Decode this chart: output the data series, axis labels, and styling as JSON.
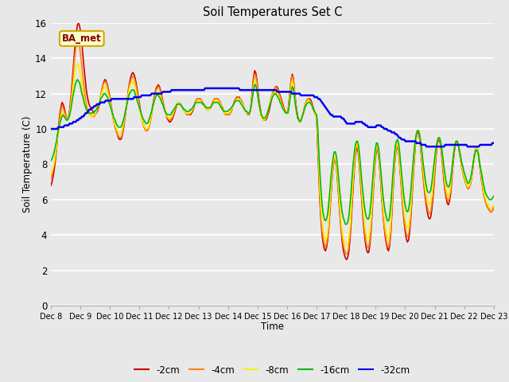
{
  "title": "Soil Temperatures Set C",
  "xlabel": "Time",
  "ylabel": "Soil Temperature (C)",
  "annotation": "BA_met",
  "ylim": [
    0,
    16
  ],
  "yticks": [
    0,
    2,
    4,
    6,
    8,
    10,
    12,
    14,
    16
  ],
  "x_labels": [
    "Dec 8",
    "Dec 9",
    "Dec 10",
    "Dec 11",
    "Dec 12",
    "Dec 13",
    "Dec 14",
    "Dec 15",
    "Dec 16",
    "Dec 17",
    "Dec 18",
    "Dec 19",
    "Dec 20",
    "Dec 21",
    "Dec 22",
    "Dec 23"
  ],
  "legend_labels": [
    "-2cm",
    "-4cm",
    "-8cm",
    "-16cm",
    "-32cm"
  ],
  "line_colors": [
    "#cc0000",
    "#ff8800",
    "#ffee00",
    "#00bb00",
    "#0000ee"
  ],
  "line_widths": [
    1.2,
    1.2,
    1.2,
    1.2,
    1.8
  ],
  "background_color": "#e8e8e8",
  "series_2cm": [
    6.8,
    7.0,
    7.3,
    7.7,
    8.2,
    8.8,
    9.5,
    10.2,
    10.8,
    11.2,
    11.5,
    11.4,
    11.2,
    10.9,
    10.6,
    10.5,
    10.7,
    11.1,
    11.7,
    12.5,
    13.3,
    14.1,
    14.9,
    15.5,
    15.9,
    16.0,
    15.8,
    15.4,
    14.8,
    14.1,
    13.4,
    12.8,
    12.2,
    11.8,
    11.5,
    11.3,
    11.2,
    11.1,
    11.0,
    10.9,
    10.9,
    10.9,
    11.0,
    11.2,
    11.5,
    11.8,
    12.2,
    12.5,
    12.7,
    12.8,
    12.7,
    12.5,
    12.2,
    11.9,
    11.5,
    11.1,
    10.7,
    10.4,
    10.1,
    9.9,
    9.7,
    9.5,
    9.4,
    9.4,
    9.5,
    9.8,
    10.2,
    10.7,
    11.2,
    11.7,
    12.2,
    12.6,
    12.9,
    13.1,
    13.2,
    13.1,
    12.9,
    12.6,
    12.2,
    11.8,
    11.4,
    11.0,
    10.7,
    10.4,
    10.2,
    10.0,
    9.9,
    9.9,
    10.0,
    10.2,
    10.5,
    10.9,
    11.3,
    11.7,
    12.0,
    12.3,
    12.4,
    12.5,
    12.4,
    12.2,
    11.9,
    11.6,
    11.3,
    11.0,
    10.8,
    10.6,
    10.5,
    10.4,
    10.4,
    10.5,
    10.6,
    10.8,
    11.0,
    11.2,
    11.4,
    11.5,
    11.5,
    11.4,
    11.3,
    11.2,
    11.1,
    11.0,
    10.9,
    10.8,
    10.8,
    10.8,
    10.8,
    10.9,
    11.0,
    11.2,
    11.4,
    11.6,
    11.7,
    11.7,
    11.7,
    11.7,
    11.6,
    11.5,
    11.4,
    11.3,
    11.2,
    11.1,
    11.1,
    11.1,
    11.2,
    11.3,
    11.5,
    11.6,
    11.7,
    11.7,
    11.7,
    11.7,
    11.6,
    11.5,
    11.3,
    11.2,
    11.0,
    10.9,
    10.8,
    10.8,
    10.8,
    10.8,
    10.9,
    11.0,
    11.2,
    11.4,
    11.6,
    11.7,
    11.8,
    11.8,
    11.8,
    11.7,
    11.6,
    11.5,
    11.3,
    11.1,
    11.0,
    10.9,
    10.8,
    10.8,
    11.0,
    11.5,
    12.2,
    12.9,
    13.3,
    13.2,
    12.8,
    12.2,
    11.6,
    11.2,
    10.8,
    10.6,
    10.5,
    10.5,
    10.5,
    10.6,
    10.8,
    11.0,
    11.3,
    11.6,
    11.9,
    12.1,
    12.3,
    12.4,
    12.4,
    12.3,
    12.1,
    11.9,
    11.7,
    11.5,
    11.3,
    11.1,
    11.0,
    10.9,
    10.9,
    11.5,
    12.2,
    12.8,
    13.1,
    12.9,
    12.2,
    11.6,
    11.1,
    10.7,
    10.5,
    10.4,
    10.5,
    10.7,
    10.9,
    11.2,
    11.4,
    11.6,
    11.7,
    11.7,
    11.7,
    11.6,
    11.4,
    11.2,
    11.0,
    10.8,
    10.7,
    9.0,
    7.4,
    5.9,
    4.8,
    4.0,
    3.5,
    3.2,
    3.1,
    3.3,
    3.7,
    4.4,
    5.3,
    6.3,
    7.2,
    7.9,
    8.3,
    8.2,
    7.8,
    7.0,
    6.1,
    5.2,
    4.4,
    3.7,
    3.2,
    2.9,
    2.7,
    2.6,
    2.7,
    3.0,
    3.6,
    4.5,
    5.6,
    6.7,
    7.7,
    8.5,
    8.9,
    8.9,
    8.4,
    7.6,
    6.7,
    5.8,
    4.9,
    4.2,
    3.6,
    3.2,
    3.0,
    3.0,
    3.4,
    4.1,
    5.1,
    6.2,
    7.3,
    8.2,
    8.8,
    8.9,
    8.5,
    7.8,
    6.9,
    6.0,
    5.2,
    4.5,
    3.9,
    3.5,
    3.2,
    3.1,
    3.4,
    4.1,
    5.2,
    6.4,
    7.5,
    8.4,
    8.9,
    9.0,
    8.7,
    8.0,
    7.2,
    6.3,
    5.5,
    4.8,
    4.2,
    3.8,
    3.6,
    3.7,
    4.1,
    4.9,
    5.9,
    7.0,
    8.0,
    8.9,
    9.5,
    9.8,
    9.8,
    9.5,
    8.9,
    8.2,
    7.5,
    6.8,
    6.2,
    5.7,
    5.3,
    5.0,
    4.9,
    5.0,
    5.4,
    6.0,
    6.8,
    7.7,
    8.5,
    9.1,
    9.4,
    9.4,
    9.1,
    8.5,
    7.8,
    7.1,
    6.5,
    6.1,
    5.8,
    5.7,
    5.9,
    6.3,
    7.0,
    7.8,
    8.5,
    9.0,
    9.3,
    9.3,
    9.1,
    8.7,
    8.3,
    7.9,
    7.6,
    7.3,
    7.1,
    6.9,
    6.7,
    6.6,
    6.7,
    6.9,
    7.2,
    7.7,
    8.2,
    8.7,
    8.9,
    8.9,
    8.6,
    8.1,
    7.6,
    7.1,
    6.7,
    6.3,
    6.0,
    5.8,
    5.6,
    5.5,
    5.4,
    5.3,
    5.3,
    5.4,
    5.5
  ],
  "series_4cm": [
    7.2,
    7.4,
    7.7,
    8.0,
    8.5,
    9.0,
    9.6,
    10.1,
    10.6,
    11.0,
    11.3,
    11.2,
    11.0,
    10.8,
    10.6,
    10.5,
    10.7,
    11.0,
    11.5,
    12.2,
    12.9,
    13.7,
    14.3,
    14.8,
    15.0,
    14.9,
    14.6,
    14.1,
    13.5,
    12.9,
    12.3,
    11.8,
    11.4,
    11.1,
    10.9,
    10.8,
    10.8,
    10.7,
    10.7,
    10.7,
    10.8,
    10.9,
    11.1,
    11.3,
    11.6,
    11.9,
    12.2,
    12.5,
    12.6,
    12.7,
    12.6,
    12.4,
    12.1,
    11.8,
    11.4,
    11.1,
    10.7,
    10.4,
    10.1,
    9.9,
    9.7,
    9.6,
    9.5,
    9.5,
    9.6,
    9.9,
    10.3,
    10.7,
    11.2,
    11.7,
    12.1,
    12.5,
    12.7,
    12.9,
    13.0,
    12.9,
    12.7,
    12.4,
    12.0,
    11.6,
    11.2,
    10.9,
    10.6,
    10.3,
    10.1,
    10.0,
    9.9,
    9.9,
    10.0,
    10.2,
    10.5,
    10.8,
    11.2,
    11.6,
    11.9,
    12.2,
    12.3,
    12.4,
    12.3,
    12.1,
    11.8,
    11.5,
    11.3,
    11.0,
    10.8,
    10.7,
    10.6,
    10.5,
    10.5,
    10.6,
    10.7,
    10.9,
    11.1,
    11.2,
    11.4,
    11.5,
    11.5,
    11.4,
    11.3,
    11.2,
    11.1,
    11.0,
    10.9,
    10.8,
    10.8,
    10.8,
    10.9,
    11.0,
    11.1,
    11.3,
    11.5,
    11.6,
    11.7,
    11.7,
    11.7,
    11.7,
    11.6,
    11.5,
    11.4,
    11.3,
    11.2,
    11.1,
    11.1,
    11.1,
    11.2,
    11.3,
    11.5,
    11.6,
    11.7,
    11.7,
    11.7,
    11.7,
    11.6,
    11.5,
    11.3,
    11.2,
    11.0,
    10.9,
    10.8,
    10.8,
    10.8,
    10.8,
    10.9,
    11.0,
    11.2,
    11.4,
    11.5,
    11.7,
    11.7,
    11.8,
    11.7,
    11.7,
    11.6,
    11.5,
    11.3,
    11.1,
    11.0,
    10.9,
    10.8,
    10.8,
    11.0,
    11.4,
    12.0,
    12.7,
    13.1,
    13.0,
    12.6,
    12.0,
    11.5,
    11.1,
    10.8,
    10.6,
    10.5,
    10.5,
    10.6,
    10.7,
    10.9,
    11.2,
    11.5,
    11.8,
    12.0,
    12.2,
    12.3,
    12.4,
    12.3,
    12.2,
    12.0,
    11.8,
    11.6,
    11.4,
    11.2,
    11.1,
    11.0,
    10.9,
    10.9,
    11.4,
    12.1,
    12.7,
    13.0,
    12.8,
    12.1,
    11.5,
    11.0,
    10.6,
    10.4,
    10.4,
    10.5,
    10.7,
    10.9,
    11.2,
    11.4,
    11.6,
    11.7,
    11.7,
    11.6,
    11.5,
    11.3,
    11.1,
    10.9,
    10.8,
    10.7,
    9.3,
    7.7,
    6.2,
    5.1,
    4.3,
    3.8,
    3.5,
    3.3,
    3.5,
    3.9,
    4.6,
    5.5,
    6.5,
    7.4,
    8.0,
    8.4,
    8.3,
    7.9,
    7.2,
    6.3,
    5.4,
    4.6,
    3.9,
    3.5,
    3.2,
    3.0,
    2.9,
    3.0,
    3.3,
    3.9,
    4.8,
    5.9,
    7.0,
    7.9,
    8.7,
    9.1,
    9.1,
    8.6,
    7.8,
    6.9,
    6.0,
    5.2,
    4.5,
    3.9,
    3.5,
    3.3,
    3.3,
    3.7,
    4.4,
    5.4,
    6.5,
    7.5,
    8.4,
    8.9,
    9.0,
    8.6,
    7.9,
    7.0,
    6.1,
    5.3,
    4.6,
    4.1,
    3.7,
    3.4,
    3.3,
    3.6,
    4.3,
    5.4,
    6.6,
    7.6,
    8.5,
    9.0,
    9.1,
    8.8,
    8.1,
    7.3,
    6.5,
    5.7,
    5.0,
    4.5,
    4.1,
    3.9,
    4.0,
    4.4,
    5.2,
    6.2,
    7.2,
    8.2,
    9.0,
    9.6,
    9.9,
    9.9,
    9.6,
    9.0,
    8.3,
    7.6,
    6.9,
    6.4,
    5.9,
    5.6,
    5.3,
    5.2,
    5.3,
    5.7,
    6.3,
    7.1,
    7.9,
    8.7,
    9.2,
    9.5,
    9.5,
    9.2,
    8.6,
    7.9,
    7.3,
    6.7,
    6.3,
    6.0,
    5.9,
    6.1,
    6.5,
    7.2,
    7.9,
    8.6,
    9.1,
    9.3,
    9.3,
    9.1,
    8.7,
    8.3,
    7.9,
    7.6,
    7.3,
    7.1,
    6.9,
    6.7,
    6.6,
    6.7,
    6.9,
    7.3,
    7.8,
    8.3,
    8.7,
    9.0,
    8.9,
    8.7,
    8.2,
    7.7,
    7.2,
    6.7,
    6.3,
    6.0,
    5.8,
    5.6,
    5.5,
    5.4,
    5.3,
    5.3,
    5.4,
    5.6
  ],
  "series_8cm": [
    7.5,
    7.6,
    7.8,
    8.1,
    8.5,
    9.0,
    9.5,
    9.9,
    10.3,
    10.6,
    10.9,
    10.9,
    10.8,
    10.6,
    10.5,
    10.5,
    10.6,
    10.9,
    11.3,
    11.8,
    12.4,
    12.9,
    13.3,
    13.6,
    13.7,
    13.6,
    13.3,
    12.9,
    12.5,
    12.1,
    11.7,
    11.4,
    11.1,
    10.9,
    10.8,
    10.8,
    10.7,
    10.7,
    10.8,
    10.8,
    10.9,
    11.0,
    11.2,
    11.4,
    11.6,
    11.8,
    12.0,
    12.2,
    12.3,
    12.4,
    12.3,
    12.1,
    11.9,
    11.6,
    11.3,
    11.0,
    10.7,
    10.5,
    10.2,
    10.1,
    9.9,
    9.8,
    9.8,
    9.8,
    9.9,
    10.2,
    10.5,
    10.9,
    11.3,
    11.7,
    12.0,
    12.3,
    12.5,
    12.6,
    12.7,
    12.6,
    12.4,
    12.1,
    11.8,
    11.5,
    11.2,
    10.9,
    10.6,
    10.4,
    10.2,
    10.1,
    10.0,
    10.0,
    10.1,
    10.3,
    10.6,
    10.9,
    11.2,
    11.5,
    11.8,
    12.0,
    12.1,
    12.1,
    12.0,
    11.8,
    11.6,
    11.4,
    11.2,
    11.0,
    10.8,
    10.7,
    10.6,
    10.6,
    10.7,
    10.7,
    10.9,
    11.0,
    11.2,
    11.3,
    11.4,
    11.5,
    11.5,
    11.4,
    11.3,
    11.2,
    11.1,
    11.0,
    10.9,
    10.9,
    10.9,
    10.9,
    10.9,
    11.0,
    11.1,
    11.3,
    11.4,
    11.5,
    11.6,
    11.6,
    11.6,
    11.6,
    11.5,
    11.4,
    11.3,
    11.2,
    11.2,
    11.1,
    11.1,
    11.1,
    11.2,
    11.3,
    11.4,
    11.5,
    11.6,
    11.6,
    11.6,
    11.6,
    11.5,
    11.4,
    11.2,
    11.1,
    11.0,
    10.9,
    10.9,
    10.9,
    10.9,
    10.9,
    11.0,
    11.1,
    11.2,
    11.4,
    11.5,
    11.6,
    11.7,
    11.7,
    11.7,
    11.6,
    11.5,
    11.4,
    11.3,
    11.1,
    11.0,
    10.9,
    10.9,
    10.9,
    11.0,
    11.4,
    11.9,
    12.4,
    12.7,
    12.7,
    12.3,
    11.8,
    11.4,
    11.0,
    10.7,
    10.6,
    10.5,
    10.5,
    10.6,
    10.8,
    11.0,
    11.3,
    11.5,
    11.7,
    11.9,
    12.0,
    12.1,
    12.1,
    12.0,
    11.9,
    11.8,
    11.6,
    11.4,
    11.3,
    11.1,
    11.0,
    10.9,
    10.9,
    10.9,
    11.3,
    11.9,
    12.4,
    12.7,
    12.5,
    11.9,
    11.4,
    10.9,
    10.6,
    10.4,
    10.4,
    10.5,
    10.7,
    10.9,
    11.1,
    11.3,
    11.5,
    11.6,
    11.6,
    11.5,
    11.4,
    11.3,
    11.1,
    10.9,
    10.8,
    10.7,
    9.6,
    8.1,
    6.6,
    5.5,
    4.7,
    4.2,
    3.9,
    3.7,
    3.8,
    4.2,
    4.9,
    5.8,
    6.7,
    7.5,
    8.1,
    8.4,
    8.4,
    8.0,
    7.3,
    6.5,
    5.7,
    4.9,
    4.3,
    3.9,
    3.6,
    3.4,
    3.4,
    3.5,
    3.8,
    4.4,
    5.3,
    6.3,
    7.3,
    8.2,
    8.8,
    9.2,
    9.2,
    8.7,
    8.0,
    7.2,
    6.3,
    5.5,
    4.9,
    4.3,
    4.0,
    3.8,
    3.8,
    4.2,
    4.8,
    5.7,
    6.7,
    7.7,
    8.5,
    9.0,
    9.1,
    8.7,
    8.0,
    7.2,
    6.4,
    5.6,
    5.0,
    4.5,
    4.1,
    3.9,
    3.8,
    4.1,
    4.8,
    5.8,
    6.9,
    7.9,
    8.7,
    9.1,
    9.2,
    8.9,
    8.3,
    7.5,
    6.8,
    6.0,
    5.4,
    4.9,
    4.6,
    4.4,
    4.5,
    4.9,
    5.6,
    6.5,
    7.5,
    8.4,
    9.1,
    9.6,
    9.9,
    9.9,
    9.7,
    9.2,
    8.5,
    7.9,
    7.3,
    6.7,
    6.3,
    6.0,
    5.8,
    5.7,
    5.9,
    6.2,
    6.8,
    7.5,
    8.2,
    8.8,
    9.3,
    9.5,
    9.5,
    9.3,
    8.8,
    8.2,
    7.6,
    7.0,
    6.6,
    6.3,
    6.2,
    6.4,
    6.8,
    7.4,
    8.1,
    8.7,
    9.1,
    9.3,
    9.3,
    9.1,
    8.8,
    8.4,
    8.0,
    7.7,
    7.4,
    7.2,
    7.0,
    6.8,
    6.7,
    6.8,
    7.0,
    7.3,
    7.8,
    8.2,
    8.6,
    8.9,
    8.9,
    8.6,
    8.2,
    7.7,
    7.3,
    6.9,
    6.5,
    6.2,
    6.0,
    5.8,
    5.7,
    5.6,
    5.5,
    5.5,
    5.6,
    5.7
  ],
  "series_16cm": [
    8.2,
    8.3,
    8.5,
    8.7,
    9.0,
    9.3,
    9.7,
    10.0,
    10.3,
    10.5,
    10.7,
    10.8,
    10.7,
    10.6,
    10.5,
    10.5,
    10.6,
    10.8,
    11.1,
    11.5,
    11.9,
    12.2,
    12.5,
    12.7,
    12.8,
    12.7,
    12.6,
    12.3,
    12.0,
    11.8,
    11.5,
    11.3,
    11.1,
    11.0,
    10.9,
    10.9,
    10.9,
    10.9,
    10.9,
    11.0,
    11.0,
    11.1,
    11.2,
    11.4,
    11.5,
    11.7,
    11.8,
    11.9,
    12.0,
    12.0,
    11.9,
    11.8,
    11.6,
    11.4,
    11.2,
    11.0,
    10.8,
    10.6,
    10.5,
    10.3,
    10.2,
    10.1,
    10.1,
    10.1,
    10.2,
    10.4,
    10.6,
    10.9,
    11.2,
    11.5,
    11.8,
    12.0,
    12.1,
    12.2,
    12.2,
    12.2,
    12.0,
    11.8,
    11.6,
    11.4,
    11.2,
    11.0,
    10.8,
    10.6,
    10.5,
    10.4,
    10.3,
    10.3,
    10.4,
    10.6,
    10.8,
    11.0,
    11.3,
    11.5,
    11.7,
    11.9,
    11.9,
    11.9,
    11.8,
    11.7,
    11.5,
    11.4,
    11.2,
    11.0,
    10.9,
    10.8,
    10.8,
    10.8,
    10.8,
    10.9,
    11.0,
    11.1,
    11.2,
    11.3,
    11.4,
    11.4,
    11.4,
    11.4,
    11.3,
    11.2,
    11.1,
    11.1,
    11.0,
    11.0,
    11.0,
    11.0,
    11.1,
    11.1,
    11.2,
    11.3,
    11.4,
    11.5,
    11.5,
    11.5,
    11.5,
    11.5,
    11.5,
    11.4,
    11.4,
    11.3,
    11.2,
    11.2,
    11.2,
    11.2,
    11.2,
    11.3,
    11.4,
    11.5,
    11.5,
    11.5,
    11.5,
    11.5,
    11.4,
    11.3,
    11.2,
    11.1,
    11.0,
    11.0,
    11.0,
    11.0,
    11.0,
    11.1,
    11.1,
    11.2,
    11.3,
    11.4,
    11.5,
    11.6,
    11.6,
    11.6,
    11.6,
    11.5,
    11.4,
    11.3,
    11.2,
    11.1,
    11.0,
    11.0,
    10.9,
    10.9,
    11.0,
    11.3,
    11.8,
    12.2,
    12.5,
    12.5,
    12.2,
    11.8,
    11.4,
    11.1,
    10.8,
    10.7,
    10.6,
    10.6,
    10.7,
    10.8,
    11.0,
    11.2,
    11.4,
    11.6,
    11.8,
    11.9,
    12.0,
    12.0,
    11.9,
    11.8,
    11.7,
    11.5,
    11.4,
    11.2,
    11.1,
    11.0,
    10.9,
    10.9,
    10.9,
    11.2,
    11.7,
    12.1,
    12.4,
    12.3,
    11.8,
    11.3,
    10.9,
    10.6,
    10.5,
    10.4,
    10.5,
    10.7,
    10.9,
    11.1,
    11.3,
    11.4,
    11.5,
    11.5,
    11.5,
    11.4,
    11.3,
    11.1,
    11.0,
    10.9,
    10.8,
    10.1,
    8.7,
    7.5,
    6.5,
    5.7,
    5.2,
    4.9,
    4.8,
    4.9,
    5.2,
    5.8,
    6.5,
    7.3,
    7.9,
    8.4,
    8.7,
    8.7,
    8.4,
    7.8,
    7.1,
    6.4,
    5.8,
    5.3,
    5.0,
    4.8,
    4.6,
    4.6,
    4.7,
    5.0,
    5.6,
    6.3,
    7.2,
    8.0,
    8.6,
    9.1,
    9.3,
    9.3,
    9.0,
    8.4,
    7.7,
    6.9,
    6.3,
    5.7,
    5.3,
    5.0,
    4.9,
    4.9,
    5.2,
    5.8,
    6.6,
    7.4,
    8.2,
    8.8,
    9.2,
    9.2,
    8.9,
    8.3,
    7.6,
    6.9,
    6.2,
    5.7,
    5.3,
    5.0,
    4.8,
    4.8,
    5.1,
    5.7,
    6.6,
    7.5,
    8.3,
    9.0,
    9.3,
    9.4,
    9.2,
    8.7,
    8.0,
    7.3,
    6.7,
    6.1,
    5.7,
    5.4,
    5.3,
    5.4,
    5.8,
    6.4,
    7.2,
    8.0,
    8.7,
    9.3,
    9.7,
    9.9,
    9.9,
    9.7,
    9.3,
    8.8,
    8.2,
    7.7,
    7.2,
    6.8,
    6.5,
    6.4,
    6.4,
    6.5,
    6.9,
    7.4,
    8.0,
    8.5,
    9.0,
    9.3,
    9.5,
    9.5,
    9.3,
    8.9,
    8.4,
    7.9,
    7.4,
    7.0,
    6.8,
    6.7,
    6.8,
    7.1,
    7.6,
    8.2,
    8.7,
    9.1,
    9.3,
    9.3,
    9.1,
    8.8,
    8.5,
    8.1,
    7.9,
    7.6,
    7.4,
    7.2,
    7.0,
    6.9,
    7.0,
    7.2,
    7.5,
    7.9,
    8.3,
    8.6,
    8.8,
    8.8,
    8.6,
    8.2,
    7.8,
    7.5,
    7.1,
    6.8,
    6.5,
    6.3,
    6.2,
    6.1,
    6.0,
    6.0,
    6.0,
    6.1,
    6.2
  ],
  "series_32cm": [
    10.0,
    10.0,
    10.0,
    10.0,
    10.0,
    10.0,
    10.1,
    10.1,
    10.1,
    10.1,
    10.1,
    10.2,
    10.2,
    10.2,
    10.2,
    10.3,
    10.3,
    10.3,
    10.4,
    10.4,
    10.4,
    10.5,
    10.5,
    10.6,
    10.6,
    10.7,
    10.7,
    10.8,
    10.9,
    10.9,
    11.0,
    11.1,
    11.1,
    11.2,
    11.2,
    11.3,
    11.3,
    11.4,
    11.4,
    11.4,
    11.5,
    11.5,
    11.5,
    11.5,
    11.6,
    11.6,
    11.6,
    11.6,
    11.6,
    11.7,
    11.7,
    11.7,
    11.7,
    11.7,
    11.7,
    11.7,
    11.7,
    11.7,
    11.7,
    11.7,
    11.7,
    11.7,
    11.7,
    11.7,
    11.7,
    11.7,
    11.7,
    11.8,
    11.8,
    11.8,
    11.8,
    11.8,
    11.8,
    11.9,
    11.9,
    11.9,
    11.9,
    11.9,
    11.9,
    11.9,
    11.9,
    12.0,
    12.0,
    12.0,
    12.0,
    12.0,
    12.0,
    12.0,
    12.0,
    12.0,
    12.1,
    12.1,
    12.1,
    12.1,
    12.1,
    12.1,
    12.1,
    12.2,
    12.2,
    12.2,
    12.2,
    12.2,
    12.2,
    12.2,
    12.2,
    12.2,
    12.2,
    12.2,
    12.2,
    12.2,
    12.2,
    12.2,
    12.2,
    12.2,
    12.2,
    12.2,
    12.2,
    12.2,
    12.2,
    12.2,
    12.2,
    12.2,
    12.2,
    12.2,
    12.3,
    12.3,
    12.3,
    12.3,
    12.3,
    12.3,
    12.3,
    12.3,
    12.3,
    12.3,
    12.3,
    12.3,
    12.3,
    12.3,
    12.3,
    12.3,
    12.3,
    12.3,
    12.3,
    12.3,
    12.3,
    12.3,
    12.3,
    12.3,
    12.3,
    12.3,
    12.3,
    12.3,
    12.2,
    12.2,
    12.2,
    12.2,
    12.2,
    12.2,
    12.2,
    12.2,
    12.2,
    12.2,
    12.2,
    12.2,
    12.2,
    12.2,
    12.2,
    12.2,
    12.2,
    12.2,
    12.2,
    12.2,
    12.2,
    12.2,
    12.2,
    12.2,
    12.2,
    12.2,
    12.2,
    12.2,
    12.2,
    12.2,
    12.1,
    12.1,
    12.1,
    12.1,
    12.1,
    12.1,
    12.1,
    12.1,
    12.1,
    12.1,
    12.1,
    12.1,
    12.0,
    12.0,
    12.0,
    12.0,
    12.0,
    12.0,
    12.0,
    11.9,
    11.9,
    11.9,
    11.9,
    11.9,
    11.9,
    11.9,
    11.9,
    11.9,
    11.9,
    11.9,
    11.8,
    11.8,
    11.8,
    11.7,
    11.7,
    11.6,
    11.5,
    11.4,
    11.3,
    11.2,
    11.1,
    11.0,
    10.9,
    10.8,
    10.8,
    10.7,
    10.7,
    10.7,
    10.7,
    10.7,
    10.7,
    10.7,
    10.6,
    10.6,
    10.5,
    10.4,
    10.3,
    10.3,
    10.3,
    10.3,
    10.3,
    10.3,
    10.3,
    10.4,
    10.4,
    10.4,
    10.4,
    10.4,
    10.4,
    10.3,
    10.3,
    10.2,
    10.2,
    10.1,
    10.1,
    10.1,
    10.1,
    10.1,
    10.1,
    10.1,
    10.2,
    10.2,
    10.2,
    10.2,
    10.1,
    10.1,
    10.0,
    10.0,
    10.0,
    9.9,
    9.9,
    9.9,
    9.8,
    9.8,
    9.8,
    9.7,
    9.7,
    9.6,
    9.5,
    9.5,
    9.4,
    9.4,
    9.4,
    9.3,
    9.3,
    9.3,
    9.3,
    9.3,
    9.3,
    9.3,
    9.3,
    9.3,
    9.2,
    9.2,
    9.2,
    9.2,
    9.1,
    9.1,
    9.1,
    9.1,
    9.0,
    9.0,
    9.0,
    9.0,
    9.0,
    9.0,
    9.0,
    9.0,
    9.0,
    9.0,
    9.0,
    9.0,
    9.0,
    9.0,
    9.0,
    9.1,
    9.1,
    9.1,
    9.1,
    9.1,
    9.1,
    9.1,
    9.1,
    9.1,
    9.1,
    9.1,
    9.1,
    9.1,
    9.1,
    9.1,
    9.1,
    9.1,
    9.1,
    9.0,
    9.0,
    9.0,
    9.0,
    9.0,
    9.0,
    9.0,
    9.0,
    9.0,
    9.0,
    9.1,
    9.1,
    9.1,
    9.1,
    9.1,
    9.1,
    9.1,
    9.1,
    9.1,
    9.1,
    9.2,
    9.2
  ]
}
